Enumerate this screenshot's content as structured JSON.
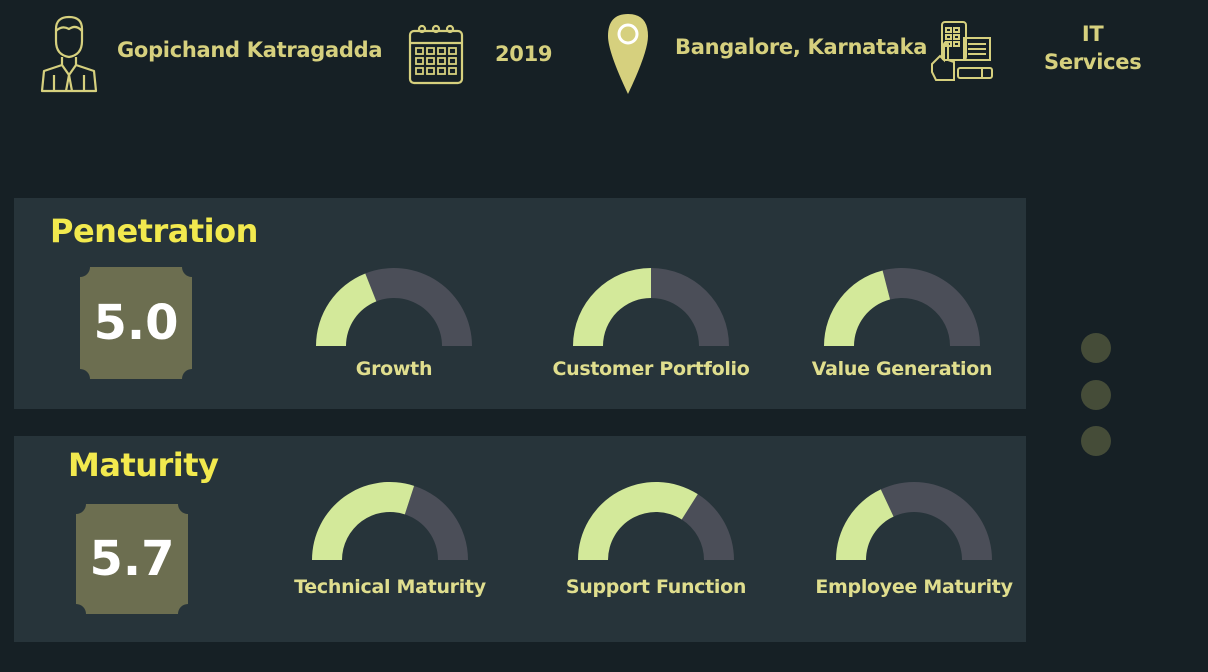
{
  "header": {
    "name": "Gopichand Katragadda",
    "year": "2019",
    "location": "Bangalore, Karnataka",
    "industry_line1": "IT",
    "industry_line2": "Services",
    "icons": [
      "person-icon",
      "calendar-icon",
      "map-pin-icon",
      "devices-icon"
    ]
  },
  "colors": {
    "gauge_fill": "#d3e99a",
    "gauge_track": "#4b4e58",
    "score_box": "#6c6e50",
    "title": "#f2e94e",
    "label": "#e0de8e"
  },
  "sections": [
    {
      "title": "Penetration",
      "score": "5.0",
      "gauges": [
        {
          "label": "Growth",
          "fraction": 0.38
        },
        {
          "label": "Customer Portfolio",
          "fraction": 0.5
        },
        {
          "label": "Value Generation",
          "fraction": 0.42
        }
      ]
    },
    {
      "title": "Maturity",
      "score": "5.7",
      "gauges": [
        {
          "label": "Technical Maturity",
          "fraction": 0.6
        },
        {
          "label": "Support Function",
          "fraction": 0.68
        },
        {
          "label": "Employee Maturity",
          "fraction": 0.36
        }
      ]
    }
  ],
  "pager": {
    "count": 3
  }
}
